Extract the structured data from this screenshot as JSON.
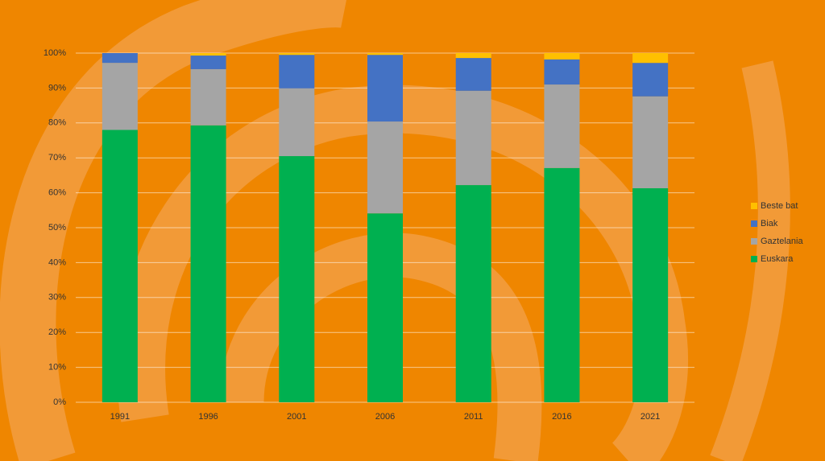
{
  "chart_data": {
    "type": "stacked_bar",
    "categories": [
      "1991",
      "1996",
      "2001",
      "2006",
      "2011",
      "2016",
      "2021"
    ],
    "series": [
      {
        "name": "Euskara",
        "color": "#00b050",
        "values": [
          78,
          79.3,
          70.5,
          54.1,
          62.2,
          67.1,
          61.3
        ]
      },
      {
        "name": "Gaztelania",
        "color": "#a5a5a5",
        "values": [
          19.2,
          16.1,
          19.4,
          26.3,
          27,
          23.9,
          26.3
        ]
      },
      {
        "name": "Biak",
        "color": "#4472c4",
        "values": [
          2.8,
          3.9,
          9.6,
          19.1,
          9.4,
          7.2,
          9.6
        ]
      },
      {
        "name": "Beste bat",
        "color": "#ffc000",
        "values": [
          0,
          0.7,
          0.5,
          0.5,
          1.4,
          1.8,
          2.8
        ]
      }
    ],
    "ylim": [
      0,
      100
    ],
    "yticks": [
      {
        "value": 0,
        "label": "0%"
      },
      {
        "value": 10,
        "label": "10%"
      },
      {
        "value": 20,
        "label": "20%"
      },
      {
        "value": 30,
        "label": "30%"
      },
      {
        "value": 40,
        "label": "40%"
      },
      {
        "value": 50,
        "label": "50%"
      },
      {
        "value": 60,
        "label": "60%"
      },
      {
        "value": 70,
        "label": "70%"
      },
      {
        "value": 80,
        "label": "80%"
      },
      {
        "value": 90,
        "label": "90%"
      },
      {
        "value": 100,
        "label": "100%"
      }
    ],
    "grid": true,
    "legend": "right"
  }
}
